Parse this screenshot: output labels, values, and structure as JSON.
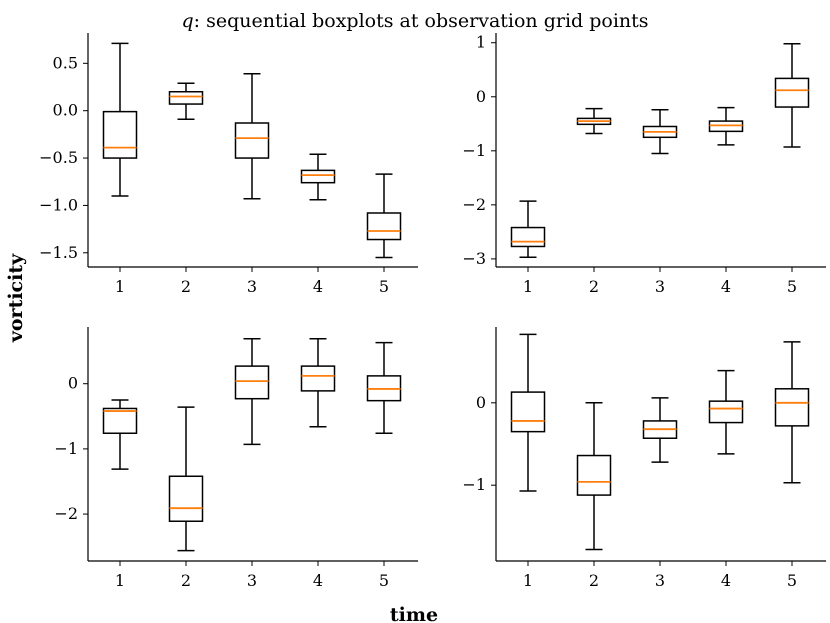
{
  "figure": {
    "title_var": "q",
    "title_rest": ": sequential boxplots at observation grid points",
    "xlabel": "time",
    "ylabel": "vorticity"
  },
  "colors": {
    "box": "#000000",
    "median": "#ff7f0e"
  },
  "chart_data": [
    {
      "type": "boxplot",
      "panel": "top-left",
      "categories": [
        "1",
        "2",
        "3",
        "4",
        "5"
      ],
      "ylim": [
        -1.65,
        0.82
      ],
      "yticks": [
        0.5,
        0.0,
        -0.5,
        -1.0,
        -1.5
      ],
      "ytick_labels": [
        "0.5",
        "0.0",
        "−0.5",
        "−1.0",
        "−1.5"
      ],
      "boxes": [
        {
          "whislo": -0.9,
          "q1": -0.5,
          "med": -0.39,
          "q3": -0.01,
          "whishi": 0.71
        },
        {
          "whislo": -0.09,
          "q1": 0.07,
          "med": 0.15,
          "q3": 0.2,
          "whishi": 0.29
        },
        {
          "whislo": -0.93,
          "q1": -0.5,
          "med": -0.29,
          "q3": -0.13,
          "whishi": 0.39
        },
        {
          "whislo": -0.94,
          "q1": -0.76,
          "med": -0.68,
          "q3": -0.63,
          "whishi": -0.46
        },
        {
          "whislo": -1.55,
          "q1": -1.36,
          "med": -1.27,
          "q3": -1.08,
          "whishi": -0.67
        }
      ]
    },
    {
      "type": "boxplot",
      "panel": "top-right",
      "categories": [
        "1",
        "2",
        "3",
        "4",
        "5"
      ],
      "ylim": [
        -3.15,
        1.18
      ],
      "yticks": [
        1,
        0,
        -1,
        -2,
        -3
      ],
      "ytick_labels": [
        "1",
        "0",
        "−1",
        "−2",
        "−3"
      ],
      "boxes": [
        {
          "whislo": -2.97,
          "q1": -2.77,
          "med": -2.68,
          "q3": -2.42,
          "whishi": -1.93
        },
        {
          "whislo": -0.68,
          "q1": -0.51,
          "med": -0.45,
          "q3": -0.4,
          "whishi": -0.22
        },
        {
          "whislo": -1.05,
          "q1": -0.75,
          "med": -0.65,
          "q3": -0.55,
          "whishi": -0.24
        },
        {
          "whislo": -0.89,
          "q1": -0.64,
          "med": -0.53,
          "q3": -0.45,
          "whishi": -0.2
        },
        {
          "whislo": -0.93,
          "q1": -0.19,
          "med": 0.12,
          "q3": 0.34,
          "whishi": 0.98
        }
      ]
    },
    {
      "type": "boxplot",
      "panel": "bottom-left",
      "categories": [
        "1",
        "2",
        "3",
        "4",
        "5"
      ],
      "ylim": [
        -2.72,
        0.87
      ],
      "yticks": [
        0,
        -1,
        -2
      ],
      "ytick_labels": [
        "0",
        "−1",
        "−2"
      ],
      "boxes": [
        {
          "whislo": -1.31,
          "q1": -0.76,
          "med": -0.42,
          "q3": -0.38,
          "whishi": -0.25
        },
        {
          "whislo": -2.56,
          "q1": -2.11,
          "med": -1.91,
          "q3": -1.42,
          "whishi": -0.36
        },
        {
          "whislo": -0.93,
          "q1": -0.23,
          "med": 0.04,
          "q3": 0.27,
          "whishi": 0.69
        },
        {
          "whislo": -0.66,
          "q1": -0.11,
          "med": 0.12,
          "q3": 0.27,
          "whishi": 0.69
        },
        {
          "whislo": -0.76,
          "q1": -0.26,
          "med": -0.08,
          "q3": 0.12,
          "whishi": 0.63
        }
      ]
    },
    {
      "type": "boxplot",
      "panel": "bottom-right",
      "categories": [
        "1",
        "2",
        "3",
        "4",
        "5"
      ],
      "ylim": [
        -1.92,
        0.92
      ],
      "yticks": [
        0,
        -1
      ],
      "ytick_labels": [
        "0",
        "−1"
      ],
      "boxes": [
        {
          "whislo": -1.07,
          "q1": -0.35,
          "med": -0.22,
          "q3": 0.13,
          "whishi": 0.83
        },
        {
          "whislo": -1.78,
          "q1": -1.12,
          "med": -0.96,
          "q3": -0.64,
          "whishi": 0.0
        },
        {
          "whislo": -0.72,
          "q1": -0.43,
          "med": -0.32,
          "q3": -0.22,
          "whishi": 0.06
        },
        {
          "whislo": -0.62,
          "q1": -0.24,
          "med": -0.07,
          "q3": 0.02,
          "whishi": 0.39
        },
        {
          "whislo": -0.97,
          "q1": -0.28,
          "med": 0.0,
          "q3": 0.17,
          "whishi": 0.74
        }
      ]
    }
  ]
}
